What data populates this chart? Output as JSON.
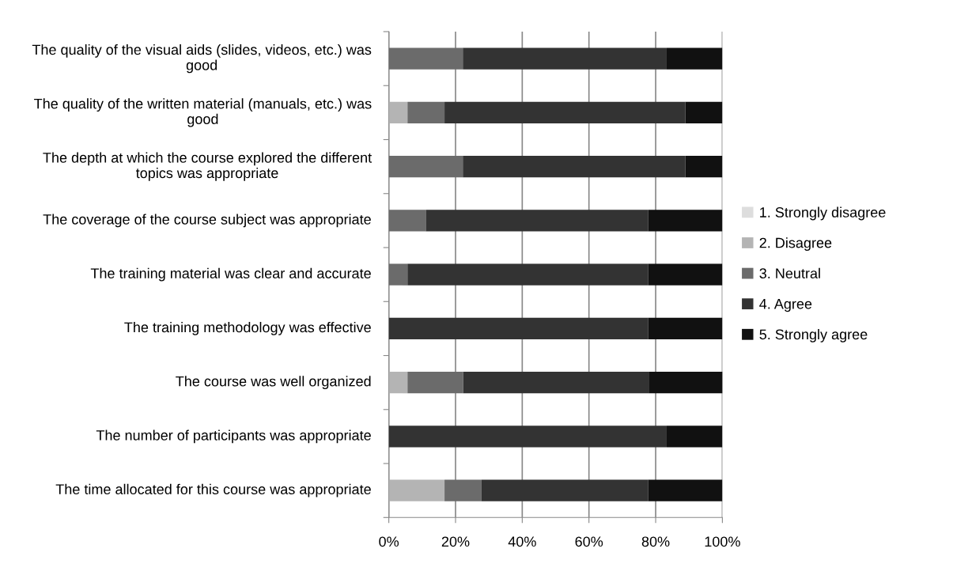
{
  "chart_data": {
    "type": "bar",
    "orientation": "horizontal",
    "stacked": true,
    "categories": [
      "The quality of the visual aids (slides, videos, etc.) was good",
      "The quality of the written material (manuals, etc.) was good",
      "The depth at which the course explored the different topics was appropriate",
      "The coverage of the course subject was appropriate",
      "The training material was clear and accurate",
      "The training methodology was effective",
      "The course was well organized",
      "The number of participants was appropriate",
      "The time allocated for this course was appropriate"
    ],
    "series": [
      {
        "name": "1. Strongly disagree",
        "color": "#dddddd",
        "values": [
          0,
          0,
          0,
          0,
          0,
          0,
          0,
          0,
          0
        ]
      },
      {
        "name": "2. Disagree",
        "color": "#b4b4b4",
        "values": [
          0,
          5.6,
          0,
          0,
          0,
          0,
          5.6,
          0,
          16.7
        ]
      },
      {
        "name": "3. Neutral",
        "color": "#6b6b6b",
        "values": [
          22.2,
          11.1,
          22.2,
          11.1,
          5.6,
          0,
          16.7,
          0,
          11.1
        ]
      },
      {
        "name": "4. Agree",
        "color": "#333333",
        "values": [
          61.1,
          72.2,
          66.7,
          66.7,
          72.2,
          77.8,
          55.6,
          83.3,
          50
        ]
      },
      {
        "name": "5. Strongly agree",
        "color": "#111111",
        "values": [
          16.7,
          11.1,
          11.1,
          22.2,
          22.2,
          22.2,
          22.2,
          16.7,
          22.2
        ]
      }
    ],
    "xlim": [
      0,
      100
    ],
    "xticks": [
      {
        "value": 0,
        "label": "0%"
      },
      {
        "value": 20,
        "label": "20%"
      },
      {
        "value": 40,
        "label": "40%"
      },
      {
        "value": 60,
        "label": "60%"
      },
      {
        "value": 80,
        "label": "80%"
      },
      {
        "value": 100,
        "label": "100%"
      }
    ],
    "grid": "x",
    "legend": "right"
  }
}
